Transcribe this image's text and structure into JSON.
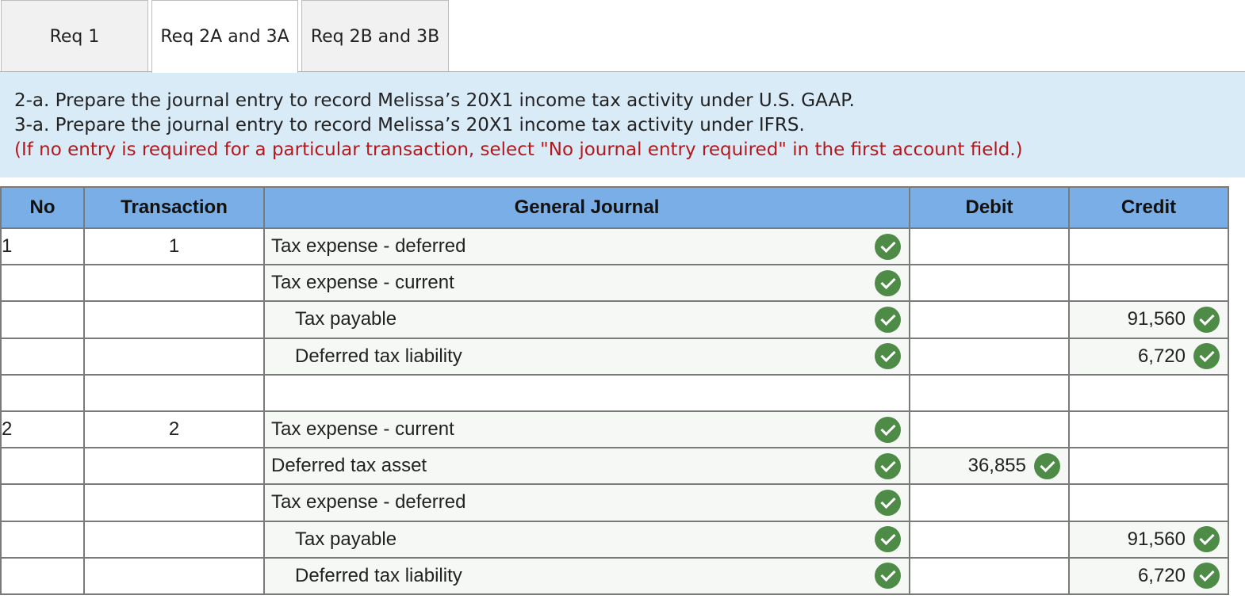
{
  "tabs": [
    {
      "label": "Req 1",
      "active": false
    },
    {
      "label": "Req 2A and 3A",
      "active": true
    },
    {
      "label": "Req 2B and 3B",
      "active": false
    }
  ],
  "instructions": {
    "line1": "2-a. Prepare the journal entry to record Melissa’s 20X1 income tax activity under U.S. GAAP.",
    "line2": "3-a. Prepare the journal entry to record Melissa’s 20X1 income tax activity under IFRS.",
    "note": "(If no entry is required for a particular transaction, select \"No journal entry required\" in the first account field.)"
  },
  "table": {
    "headers": [
      "No",
      "Transaction",
      "General Journal",
      "Debit",
      "Credit"
    ],
    "rows": [
      {
        "no": "1",
        "transaction": "1",
        "account": "Tax expense - deferred",
        "indent": false,
        "debit": "",
        "credit": ""
      },
      {
        "no": "",
        "transaction": "",
        "account": "Tax expense - current",
        "indent": false,
        "debit": "",
        "credit": ""
      },
      {
        "no": "",
        "transaction": "",
        "account": "Tax payable",
        "indent": true,
        "debit": "",
        "credit": "91,560"
      },
      {
        "no": "",
        "transaction": "",
        "account": "Deferred tax liability",
        "indent": true,
        "debit": "",
        "credit": "6,720"
      },
      {
        "no": "",
        "transaction": "",
        "account": "",
        "indent": false,
        "debit": "",
        "credit": ""
      },
      {
        "no": "2",
        "transaction": "2",
        "account": "Tax expense - current",
        "indent": false,
        "debit": "",
        "credit": ""
      },
      {
        "no": "",
        "transaction": "",
        "account": "Deferred tax asset",
        "indent": false,
        "debit": "36,855",
        "credit": ""
      },
      {
        "no": "",
        "transaction": "",
        "account": "Tax expense - deferred",
        "indent": false,
        "debit": "",
        "credit": ""
      },
      {
        "no": "",
        "transaction": "",
        "account": "Tax payable",
        "indent": true,
        "debit": "",
        "credit": "91,560"
      },
      {
        "no": "",
        "transaction": "",
        "account": "Deferred tax liability",
        "indent": true,
        "debit": "",
        "credit": "6,720"
      }
    ]
  },
  "icons": {
    "correct": "check-circle-icon"
  },
  "colors": {
    "header_bg": "#7aaee6",
    "instructions_bg": "#daebf8",
    "note_text": "#b3181d",
    "check_green": "#4d8b47"
  }
}
